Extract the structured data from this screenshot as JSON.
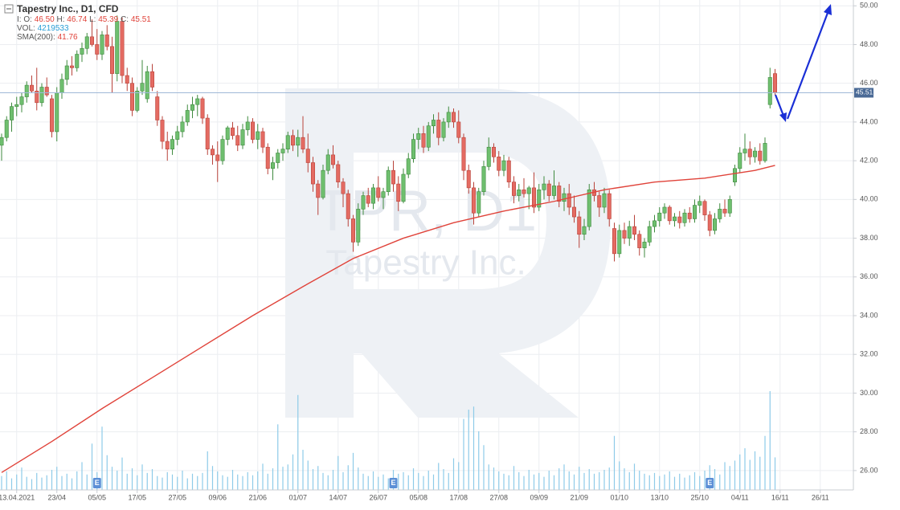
{
  "chart_data": {
    "type": "candlestick",
    "header": {
      "title": "Tapestry Inc.,  D1,  CFD",
      "ohlc_prefix": "I:",
      "fields": [
        "O:",
        "H:",
        "L:",
        "C:"
      ],
      "vol_label": "VOL:",
      "sma_label": "SMA(200):"
    },
    "last_labels": [
      "46.50",
      "46.74",
      "45.39",
      "45.51"
    ],
    "watermark": [
      "TPR, D1",
      "Tapestry Inc."
    ],
    "up_color": "#6fbf6f",
    "down_color": "#e46b62",
    "volume_color": "#8ecbe8",
    "price_line_color": "#9fb8d8",
    "grid": true,
    "ylim": [
      25,
      50.3
    ],
    "yticks": [
      {
        "value": 26,
        "label": "26.00"
      },
      {
        "value": 28,
        "label": "28.00"
      },
      {
        "value": 30,
        "label": "30.00"
      },
      {
        "value": 32,
        "label": "32.00"
      },
      {
        "value": 34,
        "label": "34.00"
      },
      {
        "value": 36,
        "label": "36.00"
      },
      {
        "value": 38,
        "label": "38.00"
      },
      {
        "value": 40,
        "label": "40.00"
      },
      {
        "value": 42,
        "label": "42.00"
      },
      {
        "value": 44,
        "label": "44.00"
      },
      {
        "value": 46,
        "label": "46.00"
      },
      {
        "value": 48,
        "label": "48.00"
      },
      {
        "value": 50,
        "label": "50.00"
      }
    ],
    "xlim": [
      -0.32,
      169.6
    ],
    "xticks": [
      {
        "value": 3,
        "label": "13.04.2021"
      },
      {
        "value": 11,
        "label": "23/04"
      },
      {
        "value": 19,
        "label": "05/05"
      },
      {
        "value": 27,
        "label": "17/05"
      },
      {
        "value": 35,
        "label": "27/05"
      },
      {
        "value": 43,
        "label": "09/06"
      },
      {
        "value": 51,
        "label": "21/06"
      },
      {
        "value": 59,
        "label": "01/07"
      },
      {
        "value": 67,
        "label": "14/07"
      },
      {
        "value": 75,
        "label": "26/07"
      },
      {
        "value": 83,
        "label": "05/08"
      },
      {
        "value": 91,
        "label": "17/08"
      },
      {
        "value": 99,
        "label": "27/08"
      },
      {
        "value": 107,
        "label": "09/09"
      },
      {
        "value": 115,
        "label": "21/09"
      },
      {
        "value": 123,
        "label": "01/10"
      },
      {
        "value": 131,
        "label": "13/10"
      },
      {
        "value": 139,
        "label": "25/10"
      },
      {
        "value": 147,
        "label": "04/11"
      },
      {
        "value": 155,
        "label": "16/11"
      },
      {
        "value": 163,
        "label": "26/11"
      }
    ],
    "events": [
      {
        "index": 19,
        "label": "E"
      },
      {
        "index": 78,
        "label": "E"
      },
      {
        "index": 141,
        "label": "E"
      }
    ],
    "candles": [
      [
        42.8,
        43.4,
        42.0,
        43.2
      ],
      [
        43.2,
        44.3,
        43.0,
        44.1
      ],
      [
        44.1,
        45.0,
        43.5,
        44.8
      ],
      [
        44.8,
        45.3,
        44.3,
        44.9
      ],
      [
        44.9,
        45.5,
        44.5,
        45.3
      ],
      [
        45.3,
        46.1,
        45.0,
        45.9
      ],
      [
        45.9,
        46.4,
        45.5,
        45.6
      ],
      [
        45.6,
        46.8,
        44.6,
        45.0
      ],
      [
        45.0,
        46.0,
        44.8,
        45.8
      ],
      [
        45.8,
        46.3,
        45.3,
        45.4
      ],
      [
        45.2,
        45.4,
        43.2,
        43.5
      ],
      [
        43.5,
        45.8,
        43.0,
        45.5
      ],
      [
        45.5,
        46.5,
        45.2,
        46.2
      ],
      [
        46.2,
        47.2,
        45.9,
        46.9
      ],
      [
        46.9,
        47.4,
        46.4,
        46.8
      ],
      [
        46.8,
        47.7,
        46.6,
        47.5
      ],
      [
        47.5,
        48.1,
        47.1,
        47.8
      ],
      [
        47.8,
        48.6,
        47.5,
        48.4
      ],
      [
        48.4,
        49.3,
        47.9,
        48.0
      ],
      [
        48.0,
        48.8,
        47.2,
        47.5
      ],
      [
        47.5,
        48.7,
        47.2,
        48.5
      ],
      [
        48.5,
        49.0,
        47.7,
        47.9
      ],
      [
        47.9,
        48.4,
        45.5,
        46.5
      ],
      [
        46.5,
        49.5,
        46.1,
        49.2
      ],
      [
        49.2,
        49.4,
        46.0,
        46.4
      ],
      [
        46.4,
        46.8,
        45.6,
        46.0
      ],
      [
        46.0,
        46.3,
        44.3,
        44.6
      ],
      [
        44.6,
        45.8,
        44.5,
        45.6
      ],
      [
        45.6,
        47.2,
        45.4,
        46.0
      ],
      [
        45.2,
        46.9,
        45.0,
        46.6
      ],
      [
        46.6,
        47.0,
        45.6,
        45.8
      ],
      [
        45.3,
        45.6,
        43.8,
        44.1
      ],
      [
        44.1,
        44.3,
        42.6,
        43.0
      ],
      [
        43.0,
        43.5,
        42.0,
        42.6
      ],
      [
        42.6,
        43.3,
        42.3,
        43.1
      ],
      [
        43.1,
        43.8,
        42.8,
        43.5
      ],
      [
        43.5,
        44.3,
        43.2,
        44.0
      ],
      [
        44.0,
        44.9,
        43.8,
        44.6
      ],
      [
        44.6,
        45.3,
        44.2,
        44.9
      ],
      [
        44.9,
        45.4,
        44.3,
        45.2
      ],
      [
        45.2,
        45.3,
        43.9,
        44.2
      ],
      [
        44.2,
        44.4,
        42.3,
        42.6
      ],
      [
        42.6,
        42.8,
        41.8,
        42.3
      ],
      [
        42.3,
        43.0,
        40.9,
        42.0
      ],
      [
        42.0,
        43.3,
        41.8,
        43.1
      ],
      [
        43.1,
        43.8,
        42.8,
        43.7
      ],
      [
        43.7,
        44.0,
        43.1,
        43.3
      ],
      [
        43.3,
        43.8,
        42.5,
        42.8
      ],
      [
        42.8,
        43.9,
        42.6,
        43.6
      ],
      [
        43.6,
        44.3,
        43.3,
        44.0
      ],
      [
        44.0,
        44.2,
        42.9,
        43.1
      ],
      [
        43.1,
        43.9,
        42.6,
        43.5
      ],
      [
        43.5,
        43.7,
        42.4,
        42.7
      ],
      [
        42.7,
        42.9,
        41.3,
        41.6
      ],
      [
        41.6,
        42.2,
        41.0,
        41.9
      ],
      [
        41.9,
        42.6,
        41.6,
        42.4
      ],
      [
        42.4,
        42.9,
        42.0,
        42.6
      ],
      [
        42.6,
        43.5,
        42.4,
        43.3
      ],
      [
        43.3,
        43.6,
        42.5,
        42.8
      ],
      [
        42.8,
        43.6,
        42.2,
        43.2
      ],
      [
        43.2,
        44.3,
        42.4,
        42.6
      ],
      [
        42.6,
        43.4,
        41.4,
        41.9
      ],
      [
        41.9,
        42.2,
        40.4,
        40.8
      ],
      [
        40.8,
        41.0,
        39.2,
        40.1
      ],
      [
        40.1,
        41.8,
        40.0,
        41.5
      ],
      [
        41.5,
        42.6,
        41.3,
        42.3
      ],
      [
        42.3,
        42.8,
        41.6,
        41.8
      ],
      [
        41.8,
        42.0,
        40.6,
        40.9
      ],
      [
        40.9,
        41.1,
        39.6,
        40.3
      ],
      [
        40.3,
        40.5,
        38.6,
        39.0
      ],
      [
        39.0,
        39.2,
        37.3,
        37.8
      ],
      [
        37.8,
        39.8,
        37.6,
        39.5
      ],
      [
        39.5,
        40.4,
        39.2,
        40.2
      ],
      [
        40.2,
        40.6,
        39.6,
        39.8
      ],
      [
        39.8,
        40.8,
        39.5,
        40.6
      ],
      [
        40.6,
        41.2,
        39.9,
        40.1
      ],
      [
        40.1,
        40.6,
        39.5,
        40.4
      ],
      [
        40.4,
        41.7,
        40.2,
        41.5
      ],
      [
        41.5,
        42.0,
        40.4,
        40.8
      ],
      [
        40.8,
        41.2,
        39.4,
        39.9
      ],
      [
        39.9,
        41.6,
        39.8,
        41.3
      ],
      [
        41.3,
        42.4,
        41.1,
        42.1
      ],
      [
        42.1,
        43.4,
        41.9,
        43.1
      ],
      [
        43.1,
        43.7,
        42.6,
        43.4
      ],
      [
        43.4,
        43.8,
        42.4,
        42.7
      ],
      [
        42.7,
        44.0,
        42.5,
        43.8
      ],
      [
        43.8,
        44.4,
        43.4,
        44.1
      ],
      [
        44.1,
        44.5,
        42.8,
        43.2
      ],
      [
        43.2,
        44.2,
        43.0,
        44.0
      ],
      [
        44.0,
        44.8,
        43.7,
        44.5
      ],
      [
        44.5,
        44.7,
        43.7,
        44.0
      ],
      [
        44.0,
        44.6,
        42.9,
        43.2
      ],
      [
        43.2,
        43.4,
        41.0,
        41.5
      ],
      [
        41.5,
        41.8,
        40.3,
        40.6
      ],
      [
        40.6,
        40.9,
        38.7,
        39.3
      ],
      [
        39.3,
        40.6,
        39.1,
        40.4
      ],
      [
        40.4,
        42.0,
        40.2,
        41.7
      ],
      [
        41.7,
        43.2,
        41.5,
        42.7
      ],
      [
        42.7,
        42.9,
        41.9,
        42.2
      ],
      [
        42.2,
        42.5,
        41.2,
        41.5
      ],
      [
        41.5,
        42.3,
        41.2,
        42.0
      ],
      [
        42.0,
        42.2,
        40.6,
        40.9
      ],
      [
        40.9,
        41.2,
        39.8,
        40.2
      ],
      [
        40.2,
        40.8,
        39.9,
        40.5
      ],
      [
        40.5,
        41.1,
        40.1,
        40.3
      ],
      [
        40.3,
        40.7,
        39.5,
        40.6
      ],
      [
        40.6,
        41.4,
        39.3,
        39.6
      ],
      [
        39.6,
        40.8,
        39.4,
        40.5
      ],
      [
        40.5,
        41.2,
        40.0,
        40.8
      ],
      [
        40.8,
        41.0,
        39.9,
        40.2
      ],
      [
        40.2,
        41.5,
        40.0,
        40.7
      ],
      [
        40.7,
        40.9,
        39.6,
        39.9
      ],
      [
        39.9,
        40.6,
        39.4,
        40.3
      ],
      [
        40.3,
        40.8,
        39.2,
        39.6
      ],
      [
        39.6,
        40.2,
        38.8,
        39.1
      ],
      [
        39.1,
        39.4,
        37.5,
        38.2
      ],
      [
        38.2,
        39.0,
        37.9,
        38.6
      ],
      [
        38.6,
        40.8,
        38.4,
        40.5
      ],
      [
        40.5,
        40.9,
        39.9,
        40.2
      ],
      [
        40.2,
        40.4,
        39.1,
        39.6
      ],
      [
        39.6,
        40.6,
        39.3,
        40.3
      ],
      [
        40.3,
        40.5,
        38.6,
        39.0
      ],
      [
        38.5,
        38.8,
        36.8,
        37.2
      ],
      [
        37.2,
        38.7,
        37.0,
        38.4
      ],
      [
        38.4,
        38.8,
        37.7,
        38.0
      ],
      [
        38.0,
        38.9,
        37.6,
        38.6
      ],
      [
        38.6,
        39.2,
        37.9,
        38.2
      ],
      [
        38.2,
        38.4,
        37.1,
        37.5
      ],
      [
        37.5,
        38.0,
        37.0,
        37.8
      ],
      [
        37.8,
        38.9,
        37.6,
        38.6
      ],
      [
        38.6,
        39.2,
        38.3,
        38.9
      ],
      [
        38.9,
        39.6,
        38.6,
        39.3
      ],
      [
        39.3,
        39.8,
        39.0,
        39.6
      ],
      [
        39.6,
        39.7,
        38.7,
        38.9
      ],
      [
        38.9,
        39.3,
        38.6,
        39.1
      ],
      [
        39.1,
        39.4,
        38.5,
        38.8
      ],
      [
        38.8,
        39.5,
        38.6,
        39.3
      ],
      [
        39.3,
        39.6,
        38.8,
        39.0
      ],
      [
        39.0,
        40.0,
        38.8,
        39.7
      ],
      [
        39.7,
        40.2,
        39.3,
        39.9
      ],
      [
        39.9,
        40.0,
        38.9,
        39.2
      ],
      [
        39.2,
        39.4,
        38.1,
        38.4
      ],
      [
        38.4,
        39.3,
        38.2,
        39.0
      ],
      [
        39.0,
        39.8,
        38.8,
        39.5
      ],
      [
        39.5,
        40.0,
        39.1,
        39.3
      ],
      [
        39.3,
        40.2,
        39.1,
        40.0
      ],
      [
        40.9,
        41.8,
        40.7,
        41.6
      ],
      [
        41.6,
        42.7,
        41.4,
        42.4
      ],
      [
        42.4,
        43.4,
        42.0,
        42.6
      ],
      [
        42.6,
        43.0,
        41.8,
        42.2
      ],
      [
        42.2,
        42.7,
        41.9,
        42.5
      ],
      [
        42.5,
        42.9,
        41.8,
        42.0
      ],
      [
        42.0,
        43.2,
        41.9,
        42.9
      ],
      [
        44.9,
        46.8,
        44.7,
        46.3
      ],
      [
        46.5,
        46.74,
        45.39,
        45.51
      ]
    ],
    "volumes": [
      1800000,
      2400000,
      1500000,
      2000000,
      2900000,
      1700000,
      1400000,
      2200000,
      1600000,
      1900000,
      2600000,
      3000000,
      1800000,
      2100000,
      1500000,
      2400000,
      3600000,
      2000000,
      6000000,
      2300000,
      8200000,
      4500000,
      3000000,
      2500000,
      4200000,
      2100000,
      2800000,
      1900000,
      3300000,
      2200000,
      2700000,
      1800000,
      1600000,
      2300000,
      2000000,
      1700000,
      2500000,
      1500000,
      2100000,
      1800000,
      2200000,
      5000000,
      3100000,
      2400000,
      1900000,
      1700000,
      2600000,
      2000000,
      1800000,
      2300000,
      1900000,
      2400000,
      3400000,
      2100000,
      2800000,
      8500000,
      3000000,
      3300000,
      4600000,
      12300000,
      5200000,
      3800000,
      2700000,
      3100000,
      2200000,
      1900000,
      2600000,
      4400000,
      2300000,
      3200000,
      4800000,
      2900000,
      2100000,
      1800000,
      2400000,
      1700000,
      2000000,
      1500000,
      2600000,
      2100000,
      2300000,
      1900000,
      2800000,
      2200000,
      1800000,
      2500000,
      2000000,
      3500000,
      2700000,
      2200000,
      4100000,
      3600000,
      9200000,
      10400000,
      10800000,
      7600000,
      5800000,
      3300000,
      2900000,
      2400000,
      2100000,
      1900000,
      3100000,
      2300000,
      1800000,
      2600000,
      2000000,
      2200000,
      1700000,
      2500000,
      1900000,
      2800000,
      3300000,
      2400000,
      2000000,
      3000000,
      2200000,
      2700000,
      2100000,
      2300000,
      2600000,
      2900000,
      7000000,
      3700000,
      2800000,
      2300000,
      3400000,
      2500000,
      2100000,
      1900000,
      2200000,
      1800000,
      2000000,
      2400000,
      1700000,
      2100000,
      1600000,
      1900000,
      2300000,
      1800000,
      2500000,
      3200000,
      2700000,
      2000000,
      3600000,
      3100000,
      3800000,
      4600000,
      5400000,
      3900000,
      5000000,
      4300000,
      7000000,
      12800000,
      4219533
    ],
    "sma": {
      "color": "#e0433a",
      "x": [
        0,
        10,
        20,
        30,
        40,
        50,
        60,
        70,
        80,
        90,
        100,
        110,
        120,
        130,
        140,
        150,
        154
      ],
      "values": [
        25.9,
        27.5,
        29.2,
        30.8,
        32.4,
        34.0,
        35.5,
        36.95,
        38.0,
        38.8,
        39.4,
        39.9,
        40.5,
        40.9,
        41.1,
        41.5,
        41.76
      ]
    }
  }
}
